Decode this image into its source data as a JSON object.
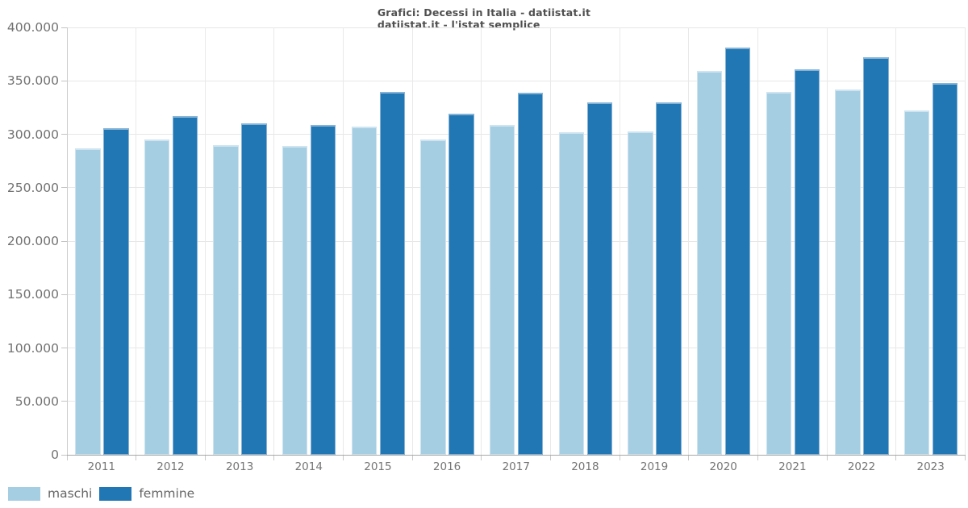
{
  "chart_data": {
    "type": "bar",
    "title": "Grafici: Decessi in Italia - datiistat.it",
    "subtitle": "datiistat.it - l'istat semplice",
    "categories": [
      "2011",
      "2012",
      "2013",
      "2014",
      "2015",
      "2016",
      "2017",
      "2018",
      "2019",
      "2020",
      "2021",
      "2022",
      "2023"
    ],
    "series": [
      {
        "name": "maschi",
        "color": "#a6cee3",
        "values": [
          287000,
          295000,
          290000,
          289000,
          307000,
          295000,
          309000,
          302000,
          303000,
          359000,
          340000,
          342000,
          322000
        ]
      },
      {
        "name": "femmine",
        "color": "#2176b4",
        "values": [
          306000,
          317000,
          310000,
          309000,
          340000,
          319000,
          339000,
          330000,
          330000,
          381000,
          361000,
          372000,
          348000
        ]
      }
    ],
    "ylim": [
      0,
      400000
    ],
    "ytick_values": [
      0,
      50000,
      100000,
      150000,
      200000,
      250000,
      300000,
      350000,
      400000
    ],
    "ytick_labels": [
      "0",
      "50.000",
      "100.000",
      "150.000",
      "200.000",
      "250.000",
      "300.000",
      "350.000",
      "400.000"
    ],
    "grid": "on",
    "legend_position": "bottom-left"
  },
  "palette": {
    "background": "#ffffff",
    "gridline": "#e7e7e7",
    "axis_line": "#a8a8a8",
    "tick": "#cccccc",
    "axis_text": "#757575",
    "title_text": "#4f4f4f",
    "legend_text": "#666666"
  }
}
